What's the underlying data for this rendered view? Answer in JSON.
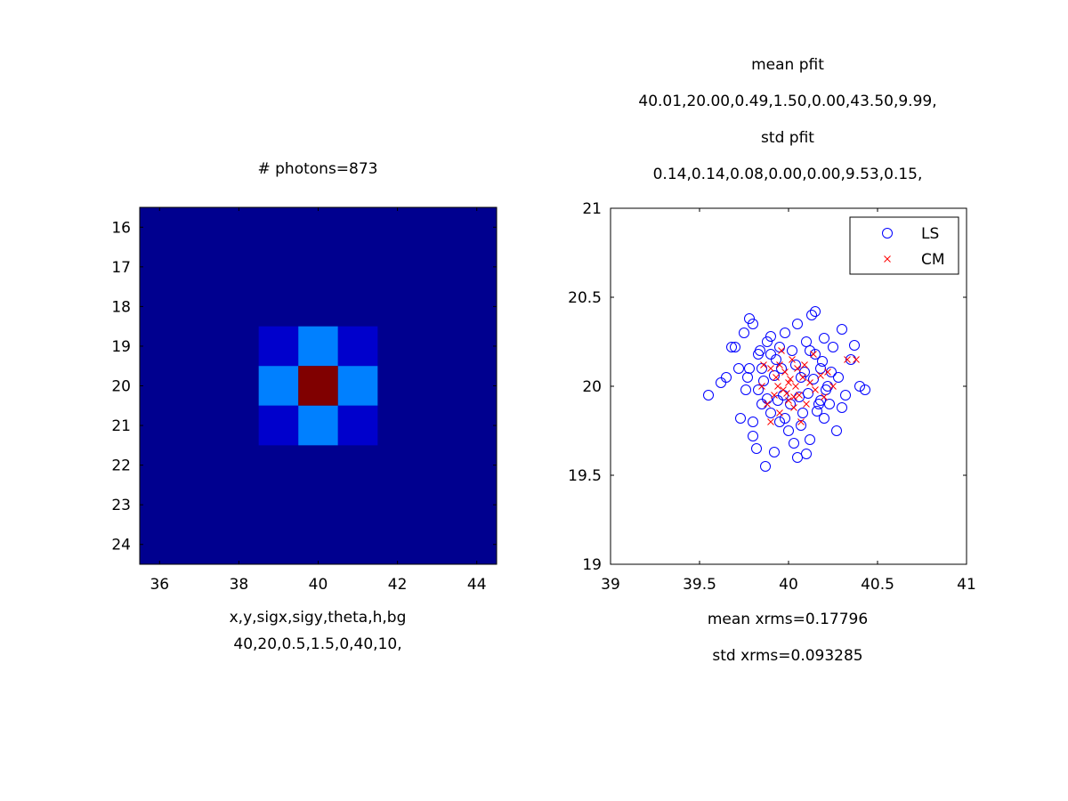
{
  "left_panel": {
    "title": "# photons=873",
    "xlabel_line1": "x,y,sigx,sigy,theta,h,bg",
    "xlabel_line2": "40,20,0.5,1.5,0,40,10,"
  },
  "right_panel": {
    "title_line1": "mean pfit",
    "title_line2": "40.01,20.00,0.49,1.50,0.00,43.50,9.99,",
    "title_line3": "std pfit",
    "title_line4": "0.14,0.14,0.08,0.00,0.00,9.53,0.15,",
    "xlabel_line1": "mean xrms=0.17796",
    "xlabel_line2": "std xrms=0.093285"
  },
  "chart_data": [
    {
      "type": "heatmap",
      "title": "# photons=873",
      "xlabel": "x,y,sigx,sigy,theta,h,bg",
      "x_range": [
        35.5,
        44.5
      ],
      "y_range": [
        15.5,
        24.5
      ],
      "y_reversed": true,
      "x_ticks": [
        36,
        38,
        40,
        42,
        44
      ],
      "y_ticks": [
        16,
        17,
        18,
        19,
        20,
        21,
        22,
        23,
        24
      ],
      "background_color": "#00008f",
      "cells": [
        {
          "x": 39,
          "y": 19,
          "color": "#0000cc"
        },
        {
          "x": 40,
          "y": 19,
          "color": "#0080ff"
        },
        {
          "x": 41,
          "y": 19,
          "color": "#0000cc"
        },
        {
          "x": 39,
          "y": 20,
          "color": "#0080ff"
        },
        {
          "x": 40,
          "y": 20,
          "color": "#800000"
        },
        {
          "x": 41,
          "y": 20,
          "color": "#0080ff"
        },
        {
          "x": 39,
          "y": 21,
          "color": "#0000cc"
        },
        {
          "x": 40,
          "y": 21,
          "color": "#0080ff"
        },
        {
          "x": 41,
          "y": 21,
          "color": "#0000cc"
        }
      ]
    },
    {
      "type": "scatter",
      "xlim": [
        39,
        41
      ],
      "ylim": [
        19,
        21
      ],
      "x_ticks": [
        39,
        39.5,
        40,
        40.5,
        41
      ],
      "y_ticks": [
        19,
        19.5,
        20,
        20.5,
        21
      ],
      "legend_position": "top-right",
      "series": [
        {
          "name": "LS",
          "marker": "circle",
          "color": "#0000ff",
          "points": [
            [
              39.55,
              19.95
            ],
            [
              39.62,
              20.02
            ],
            [
              39.65,
              20.05
            ],
            [
              39.68,
              20.22
            ],
            [
              39.7,
              20.22
            ],
            [
              39.72,
              20.1
            ],
            [
              39.73,
              19.82
            ],
            [
              39.75,
              20.3
            ],
            [
              39.77,
              20.05
            ],
            [
              39.78,
              20.38
            ],
            [
              39.8,
              20.35
            ],
            [
              39.8,
              19.72
            ],
            [
              39.82,
              19.65
            ],
            [
              39.83,
              20.18
            ],
            [
              39.85,
              19.9
            ],
            [
              39.85,
              20.1
            ],
            [
              39.87,
              19.55
            ],
            [
              39.88,
              20.25
            ],
            [
              39.9,
              19.85
            ],
            [
              39.9,
              20.28
            ],
            [
              39.92,
              19.63
            ],
            [
              39.93,
              20.15
            ],
            [
              39.95,
              19.8
            ],
            [
              39.95,
              20.22
            ],
            [
              39.97,
              19.95
            ],
            [
              39.98,
              20.3
            ],
            [
              40.0,
              19.75
            ],
            [
              40.02,
              20.2
            ],
            [
              40.03,
              19.68
            ],
            [
              40.05,
              20.35
            ],
            [
              40.05,
              19.6
            ],
            [
              40.07,
              20.05
            ],
            [
              40.08,
              19.85
            ],
            [
              40.1,
              20.25
            ],
            [
              40.1,
              19.62
            ],
            [
              40.12,
              19.7
            ],
            [
              40.13,
              20.4
            ],
            [
              40.15,
              20.42
            ],
            [
              40.15,
              20.18
            ],
            [
              40.17,
              19.9
            ],
            [
              40.18,
              20.1
            ],
            [
              40.2,
              20.27
            ],
            [
              40.2,
              19.82
            ],
            [
              40.22,
              20.0
            ],
            [
              40.23,
              19.9
            ],
            [
              40.25,
              20.22
            ],
            [
              40.27,
              19.75
            ],
            [
              40.28,
              20.05
            ],
            [
              40.3,
              20.32
            ],
            [
              40.3,
              19.88
            ],
            [
              40.32,
              19.95
            ],
            [
              40.35,
              20.15
            ],
            [
              40.37,
              20.23
            ],
            [
              40.4,
              20.0
            ],
            [
              40.43,
              19.98
            ],
            [
              39.76,
              19.98
            ],
            [
              39.78,
              20.1
            ],
            [
              39.83,
              19.98
            ],
            [
              39.86,
              20.03
            ],
            [
              39.88,
              19.93
            ],
            [
              39.92,
              20.06
            ],
            [
              39.94,
              19.92
            ],
            [
              39.96,
              20.1
            ],
            [
              40.01,
              19.9
            ],
            [
              40.04,
              20.12
            ],
            [
              40.06,
              19.94
            ],
            [
              40.09,
              20.08
            ],
            [
              40.11,
              19.96
            ],
            [
              40.14,
              20.04
            ],
            [
              40.16,
              19.86
            ],
            [
              40.19,
              20.14
            ],
            [
              40.21,
              19.98
            ],
            [
              39.8,
              19.8
            ],
            [
              39.84,
              20.2
            ],
            [
              39.9,
              20.18
            ],
            [
              39.98,
              19.82
            ],
            [
              40.07,
              19.78
            ],
            [
              40.12,
              20.2
            ],
            [
              40.18,
              19.92
            ],
            [
              40.24,
              20.08
            ]
          ]
        },
        {
          "name": "CM",
          "marker": "x",
          "color": "#ff0000",
          "points": [
            [
              39.85,
              20.0
            ],
            [
              39.88,
              19.9
            ],
            [
              39.9,
              20.1
            ],
            [
              39.92,
              19.95
            ],
            [
              39.93,
              20.05
            ],
            [
              39.95,
              19.85
            ],
            [
              39.95,
              20.12
            ],
            [
              39.97,
              19.98
            ],
            [
              39.98,
              20.08
            ],
            [
              40.0,
              19.92
            ],
            [
              40.0,
              20.02
            ],
            [
              40.02,
              20.15
            ],
            [
              40.03,
              19.88
            ],
            [
              40.04,
              20.0
            ],
            [
              40.05,
              20.1
            ],
            [
              40.06,
              19.95
            ],
            [
              40.08,
              20.05
            ],
            [
              40.1,
              19.9
            ],
            [
              40.12,
              20.02
            ],
            [
              40.15,
              19.98
            ],
            [
              40.18,
              20.06
            ],
            [
              40.2,
              19.94
            ],
            [
              40.25,
              20.0
            ],
            [
              40.33,
              20.15
            ],
            [
              40.38,
              20.15
            ],
            [
              39.96,
              20.2
            ],
            [
              40.07,
              19.8
            ],
            [
              39.9,
              19.8
            ],
            [
              40.14,
              20.18
            ],
            [
              39.86,
              20.12
            ],
            [
              40.22,
              20.08
            ],
            [
              39.99,
              19.96
            ],
            [
              40.01,
              20.04
            ],
            [
              40.03,
              19.94
            ],
            [
              39.94,
              20.0
            ],
            [
              40.09,
              20.12
            ]
          ]
        }
      ]
    }
  ]
}
